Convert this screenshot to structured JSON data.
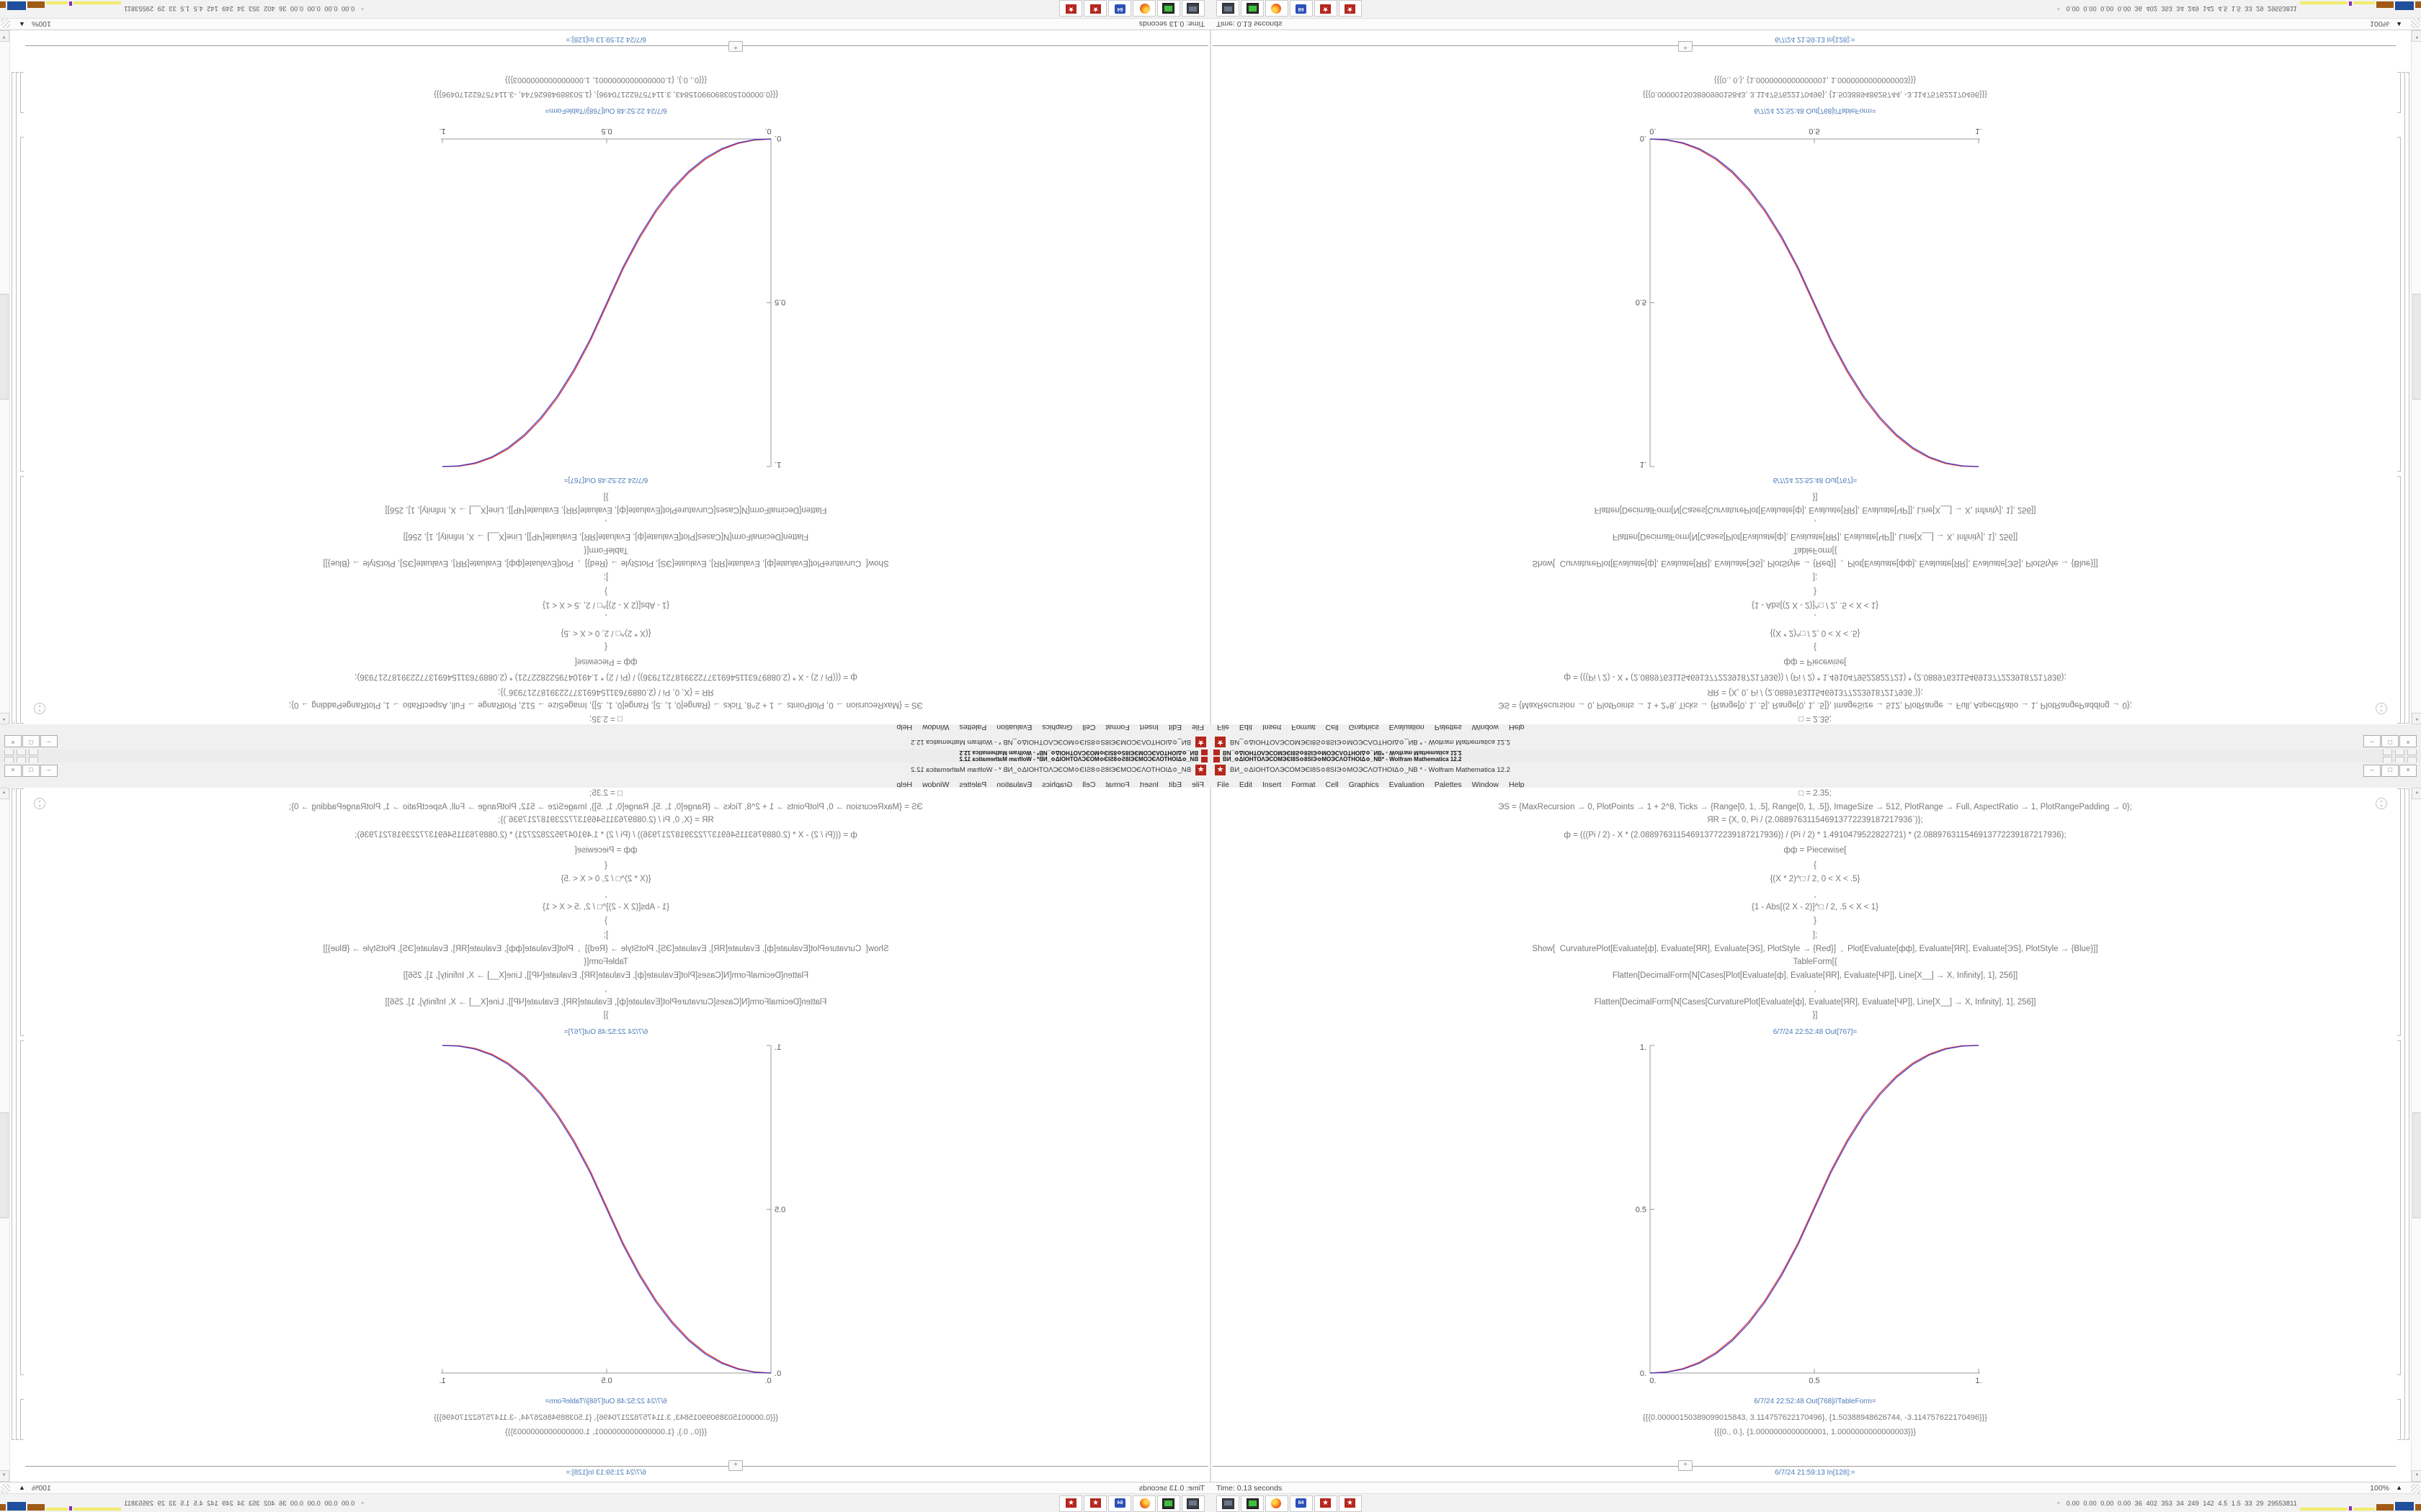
{
  "quadrants": [
    {
      "id": "top-left",
      "transform": "rotate-180"
    },
    {
      "id": "top-right",
      "transform": "flip-vertical"
    },
    {
      "id": "bottom-left",
      "transform": "flip-horizontal"
    },
    {
      "id": "bottom-right",
      "transform": "none"
    }
  ],
  "window": {
    "back_title": "ВИ_≎ΔΙΟΗΤΟΛЭСОМЭЄІ8Ѕ≎8ЅІЭ≎МОЭСΛОТНОІΔ≎_NB* - Wolfram Mathematica 12.2",
    "title": "ВИ_≎ΔΙΟΗΤΟΛЭСОМЭЄІ8Ѕ≎8ЅІЭ≎МОЭСΛОТНОІΔ≎_NB * - Wolfram Mathematica 12.2",
    "app_icon_glyph": "★",
    "buttons": {
      "minimize": "–",
      "maximize": "□",
      "close": "×"
    },
    "menu": [
      "File",
      "Edit",
      "Insert",
      "Format",
      "Cell",
      "Graphics",
      "Evaluation",
      "Palettes",
      "Window",
      "Help"
    ]
  },
  "notebook": {
    "input_lines": [
      "□ = 2.35;",
      "ЭЅ = {MaxRecursion → 0, PlotPoints → 1 + 2^8, Ticks → {Range[0, 1, .5], Range[0, 1, .5]}, ImageSize → 512, PlotRange → Full, AspectRatio → 1, PlotRangePadding → 0};",
      "ЯR = {X, 0, Pi / (2.088976311546913772239187217936`)};",
      "ф = (((Pi / 2) - X * (2.088976311546913772239187217936)) / (Pi / 2) * 1.4910479522822721) * (2.088976311546913772239187217936);",
      "фф = Piecewise[",
      "{",
      "{(X * 2)^□ / 2, 0 < X < .5}",
      ",",
      "{1 - Abs[(2 X - 2)]^□ / 2, .5 < X < 1}",
      "}",
      "];",
      "Show[  CurvaturePlot[Evaluate[ф], Evaluate[ЯR], Evaluate[ЭЅ], PlotStyle → {Red}]  ,  Plot[Evaluate[фф], Evaluate[ЯR], Evaluate[ЭЅ], PlotStyle → {Blue}]]",
      "TableForm[{",
      "Flatten[DecimalForm[N[Cases[Plot[Evaluate[ф], Evaluate[ЯR], Evaluate[ЧР]], Line[X__] → X, Infinity], 1], 256]]",
      ",",
      "Flatten[DecimalForm[N[Cases[CurvaturePlot[Evaluate[ф], Evaluate[ЯR], Evaluate[ЧР]], Line[X__] → X, Infinity], 1], 256]]",
      "}]"
    ],
    "out1_label": "6/7/24 22:52:48 Out[767]=",
    "out2_label": "6/7/24 22:52:48 Out[768]//TableForm=",
    "table_rows": [
      "{{{0.00000150389099015843, 3.114757622170496}, {1.50388948626744, -3.114757622170496}}}",
      "{{{0., 0.}, {1.0000000000000001, 1.0000000000000003}}}"
    ],
    "insert_plus": "+",
    "next_in_label": "6/7/24 21:59:13 In[128]:="
  },
  "status_bar": {
    "message": "Time: 0.13 seconds",
    "zoom": "100%",
    "zoom_menu_icon": "▲"
  },
  "taskbar": {
    "buttons": [
      "computer",
      "sensor-panel",
      "firefox",
      "hwinfo64",
      "mathematica",
      "mathematica"
    ],
    "hwinfo_label": "64",
    "mathematica_glyph": "★",
    "tray_chevron": "^",
    "tray_values": [
      "0.00",
      "0.00",
      "0.00",
      "0.00",
      "36",
      "402",
      "353",
      "34",
      "249",
      "142",
      "4.5",
      "1.5",
      "33",
      "29",
      "29553811"
    ],
    "tray_graphs": [
      {
        "color": "#f1ec6a",
        "w": 66,
        "h": 4
      },
      {
        "color": "#8c2bb8",
        "w": 4,
        "h": 6
      },
      {
        "color": "#f1ec6a",
        "w": 30,
        "h": 4
      },
      {
        "color": "#a05a14",
        "w": 24,
        "h": 9
      },
      {
        "color": "#1f4e9c",
        "w": 26,
        "h": 12
      },
      {
        "color": "#a05a14",
        "w": 26,
        "h": 9
      },
      {
        "color": "#49c24d",
        "w": 40,
        "h": 7
      }
    ]
  },
  "chart_data": {
    "type": "line",
    "title": "",
    "xlabel": "",
    "ylabel": "",
    "xlim": [
      0,
      1
    ],
    "ylim": [
      0,
      1
    ],
    "x_ticks": [
      "0.",
      "0.5",
      "1."
    ],
    "y_ticks": [
      "0.",
      "0.5",
      "1."
    ],
    "grid": false,
    "legend": "none",
    "x": [
      0,
      0.05,
      0.1,
      0.15,
      0.2,
      0.25,
      0.3,
      0.35,
      0.4,
      0.45,
      0.5,
      0.55,
      0.6,
      0.65,
      0.7,
      0.75,
      0.8,
      0.85,
      0.9,
      0.95,
      1
    ],
    "series": [
      {
        "name": "CurvaturePlot ф (Red)",
        "color": "#d92b2b",
        "y": [
          0,
          0.0033,
          0.0136,
          0.0327,
          0.0621,
          0.1029,
          0.1562,
          0.2222,
          0.3027,
          0.3969,
          0.507,
          0.6169,
          0.7107,
          0.7902,
          0.8552,
          0.9069,
          0.9461,
          0.9737,
          0.9908,
          0.9989,
          1
        ]
      },
      {
        "name": "Plot фф piecewise (Blue)",
        "color": "#3434cf",
        "y": [
          0,
          0.0022,
          0.0114,
          0.0295,
          0.058,
          0.098,
          0.1505,
          0.216,
          0.296,
          0.39,
          0.5,
          0.61,
          0.704,
          0.784,
          0.8495,
          0.902,
          0.942,
          0.9705,
          0.9886,
          0.9978,
          1
        ]
      }
    ]
  }
}
